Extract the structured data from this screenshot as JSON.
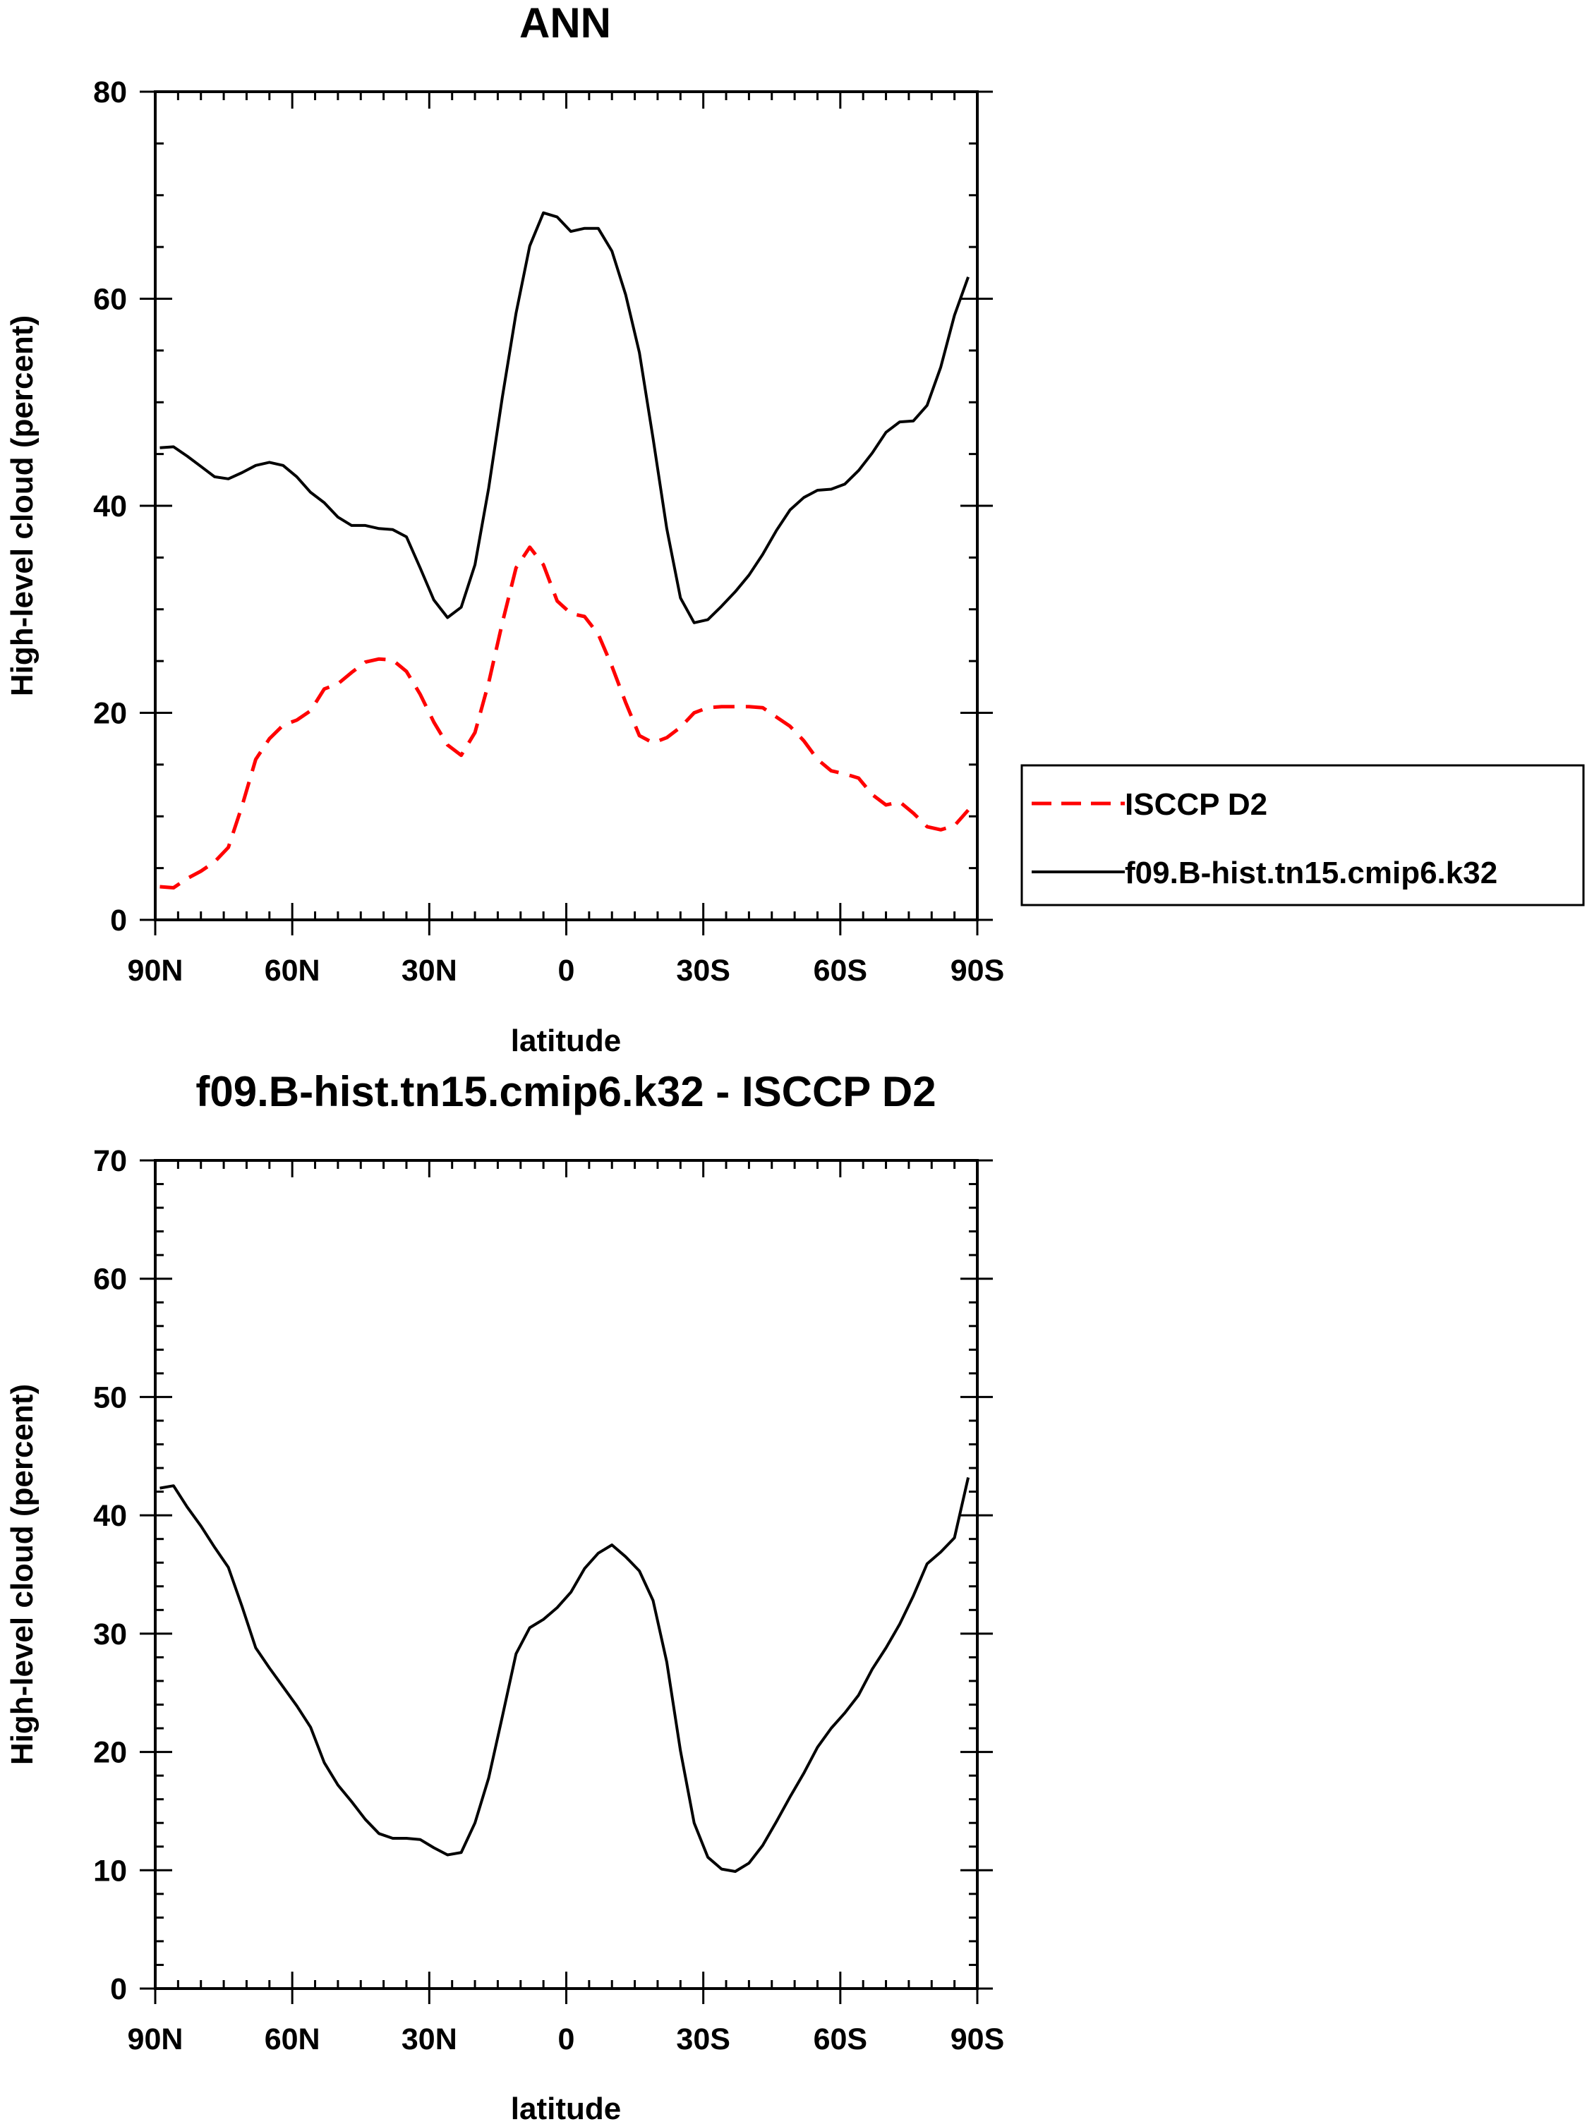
{
  "chart_data": [
    {
      "type": "line",
      "title": "ANN",
      "xlabel": "latitude",
      "ylabel": "High-level cloud (percent)",
      "xlim": [
        -90,
        90
      ],
      "ylim": [
        0,
        80
      ],
      "x_ticks": [
        {
          "value": -90,
          "label": "90N"
        },
        {
          "value": -60,
          "label": "60N"
        },
        {
          "value": -30,
          "label": "30N"
        },
        {
          "value": 0,
          "label": "0"
        },
        {
          "value": 30,
          "label": "30S"
        },
        {
          "value": 60,
          "label": "60S"
        },
        {
          "value": 90,
          "label": "90S"
        }
      ],
      "y_ticks": [
        {
          "value": 0,
          "label": "0"
        },
        {
          "value": 20,
          "label": "20"
        },
        {
          "value": 40,
          "label": "40"
        },
        {
          "value": 60,
          "label": "60"
        },
        {
          "value": 80,
          "label": "80"
        }
      ],
      "legend": "outside-right",
      "series": [
        {
          "name": "ISCCP D2",
          "color": "#ff0000",
          "dash": "dashed",
          "x": [
            -89,
            -86,
            -83,
            -80,
            -77,
            -74,
            -71,
            -68,
            -65,
            -62,
            -59,
            -56,
            -53,
            -50,
            -47,
            -44,
            -41,
            -38,
            -35,
            -32,
            -29,
            -26,
            -23,
            -20,
            -17,
            -14,
            -11,
            -8,
            -5,
            -2,
            1,
            4,
            7,
            10,
            13,
            16,
            19,
            22,
            25,
            28,
            31,
            34,
            37,
            40,
            43,
            46,
            49,
            52,
            55,
            58,
            61,
            64,
            67,
            70,
            73,
            76,
            79,
            82,
            85,
            88
          ],
          "values": [
            3.2,
            3.1,
            4.0,
            4.7,
            5.6,
            7.0,
            11.0,
            15.5,
            17.5,
            18.8,
            19.3,
            20.2,
            22.3,
            22.8,
            23.9,
            24.9,
            25.2,
            25.1,
            24.0,
            21.8,
            19.1,
            16.9,
            15.9,
            18.1,
            22.9,
            28.7,
            34.0,
            36.0,
            34.3,
            30.8,
            29.6,
            29.3,
            27.6,
            24.5,
            21.0,
            17.8,
            17.1,
            17.6,
            18.6,
            20.0,
            20.5,
            20.6,
            20.6,
            20.6,
            20.5,
            19.6,
            18.7,
            17.3,
            15.5,
            14.4,
            14.1,
            13.7,
            12.1,
            11.1,
            11.4,
            10.3,
            9.0,
            8.7,
            9.1,
            10.6
          ]
        },
        {
          "name": "f09.B-hist.tn15.cmip6.k32",
          "color": "#000000",
          "dash": "solid",
          "x": [
            -89,
            -86,
            -83,
            -80,
            -77,
            -74,
            -71,
            -68,
            -65,
            -62,
            -59,
            -56,
            -53,
            -50,
            -47,
            -44,
            -41,
            -38,
            -35,
            -32,
            -29,
            -26,
            -23,
            -20,
            -17,
            -14,
            -11,
            -8,
            -5,
            -2,
            1,
            4,
            7,
            10,
            13,
            16,
            19,
            22,
            25,
            28,
            31,
            34,
            37,
            40,
            43,
            46,
            49,
            52,
            55,
            58,
            61,
            64,
            67,
            70,
            73,
            76,
            79,
            82,
            85,
            88
          ],
          "values": [
            45.6,
            45.7,
            44.8,
            43.8,
            42.8,
            42.6,
            43.2,
            43.9,
            44.2,
            43.9,
            42.8,
            41.3,
            40.3,
            38.9,
            38.1,
            38.1,
            37.8,
            37.7,
            37.0,
            34.0,
            30.9,
            29.2,
            30.2,
            34.3,
            41.7,
            50.5,
            58.6,
            65.1,
            68.3,
            67.9,
            66.5,
            66.8,
            66.8,
            64.6,
            60.4,
            54.8,
            46.5,
            37.8,
            31.1,
            28.7,
            29.0,
            30.3,
            31.7,
            33.3,
            35.3,
            37.6,
            39.6,
            40.8,
            41.5,
            41.6,
            42.1,
            43.4,
            45.1,
            47.1,
            48.1,
            48.2,
            49.7,
            53.4,
            58.4,
            62.1
          ]
        }
      ]
    },
    {
      "type": "line",
      "title": "f09.B-hist.tn15.cmip6.k32 - ISCCP D2",
      "xlabel": "latitude",
      "ylabel": "High-level cloud (percent)",
      "xlim": [
        -90,
        90
      ],
      "ylim": [
        0,
        70
      ],
      "x_ticks": [
        {
          "value": -90,
          "label": "90N"
        },
        {
          "value": -60,
          "label": "60N"
        },
        {
          "value": -30,
          "label": "30N"
        },
        {
          "value": 0,
          "label": "0"
        },
        {
          "value": 30,
          "label": "30S"
        },
        {
          "value": 60,
          "label": "60S"
        },
        {
          "value": 90,
          "label": "90S"
        }
      ],
      "y_ticks": [
        {
          "value": 0,
          "label": "0"
        },
        {
          "value": 10,
          "label": "10"
        },
        {
          "value": 20,
          "label": "20"
        },
        {
          "value": 30,
          "label": "30"
        },
        {
          "value": 40,
          "label": "40"
        },
        {
          "value": 50,
          "label": "50"
        },
        {
          "value": 60,
          "label": "60"
        },
        {
          "value": 70,
          "label": "70"
        }
      ],
      "series": [
        {
          "name": "f09.B-hist.tn15.cmip6.k32 - ISCCP D2",
          "color": "#000000",
          "dash": "solid",
          "x": [
            -89,
            -86,
            -83,
            -80,
            -77,
            -74,
            -71,
            -68,
            -65,
            -62,
            -59,
            -56,
            -53,
            -50,
            -47,
            -44,
            -41,
            -38,
            -35,
            -32,
            -29,
            -26,
            -23,
            -20,
            -17,
            -14,
            -11,
            -8,
            -5,
            -2,
            1,
            4,
            7,
            10,
            13,
            16,
            19,
            22,
            25,
            28,
            31,
            34,
            37,
            40,
            43,
            46,
            49,
            52,
            55,
            58,
            61,
            64,
            67,
            70,
            73,
            76,
            79,
            82,
            85,
            88
          ],
          "values": [
            42.3,
            42.5,
            40.7,
            39.1,
            37.3,
            35.6,
            32.3,
            28.8,
            27.1,
            25.5,
            23.9,
            22.1,
            19.1,
            17.2,
            15.8,
            14.3,
            13.1,
            12.7,
            12.7,
            12.6,
            11.9,
            11.3,
            11.5,
            14.0,
            17.8,
            23.0,
            28.3,
            30.5,
            31.2,
            32.2,
            33.5,
            35.5,
            36.8,
            37.5,
            36.5,
            35.3,
            32.8,
            27.6,
            20.1,
            14.0,
            11.1,
            10.1,
            9.9,
            10.6,
            12.1,
            14.1,
            16.2,
            18.2,
            20.4,
            22.0,
            23.3,
            24.8,
            27.0,
            28.8,
            30.8,
            33.2,
            35.9,
            36.9,
            38.1,
            43.2
          ]
        }
      ]
    }
  ]
}
